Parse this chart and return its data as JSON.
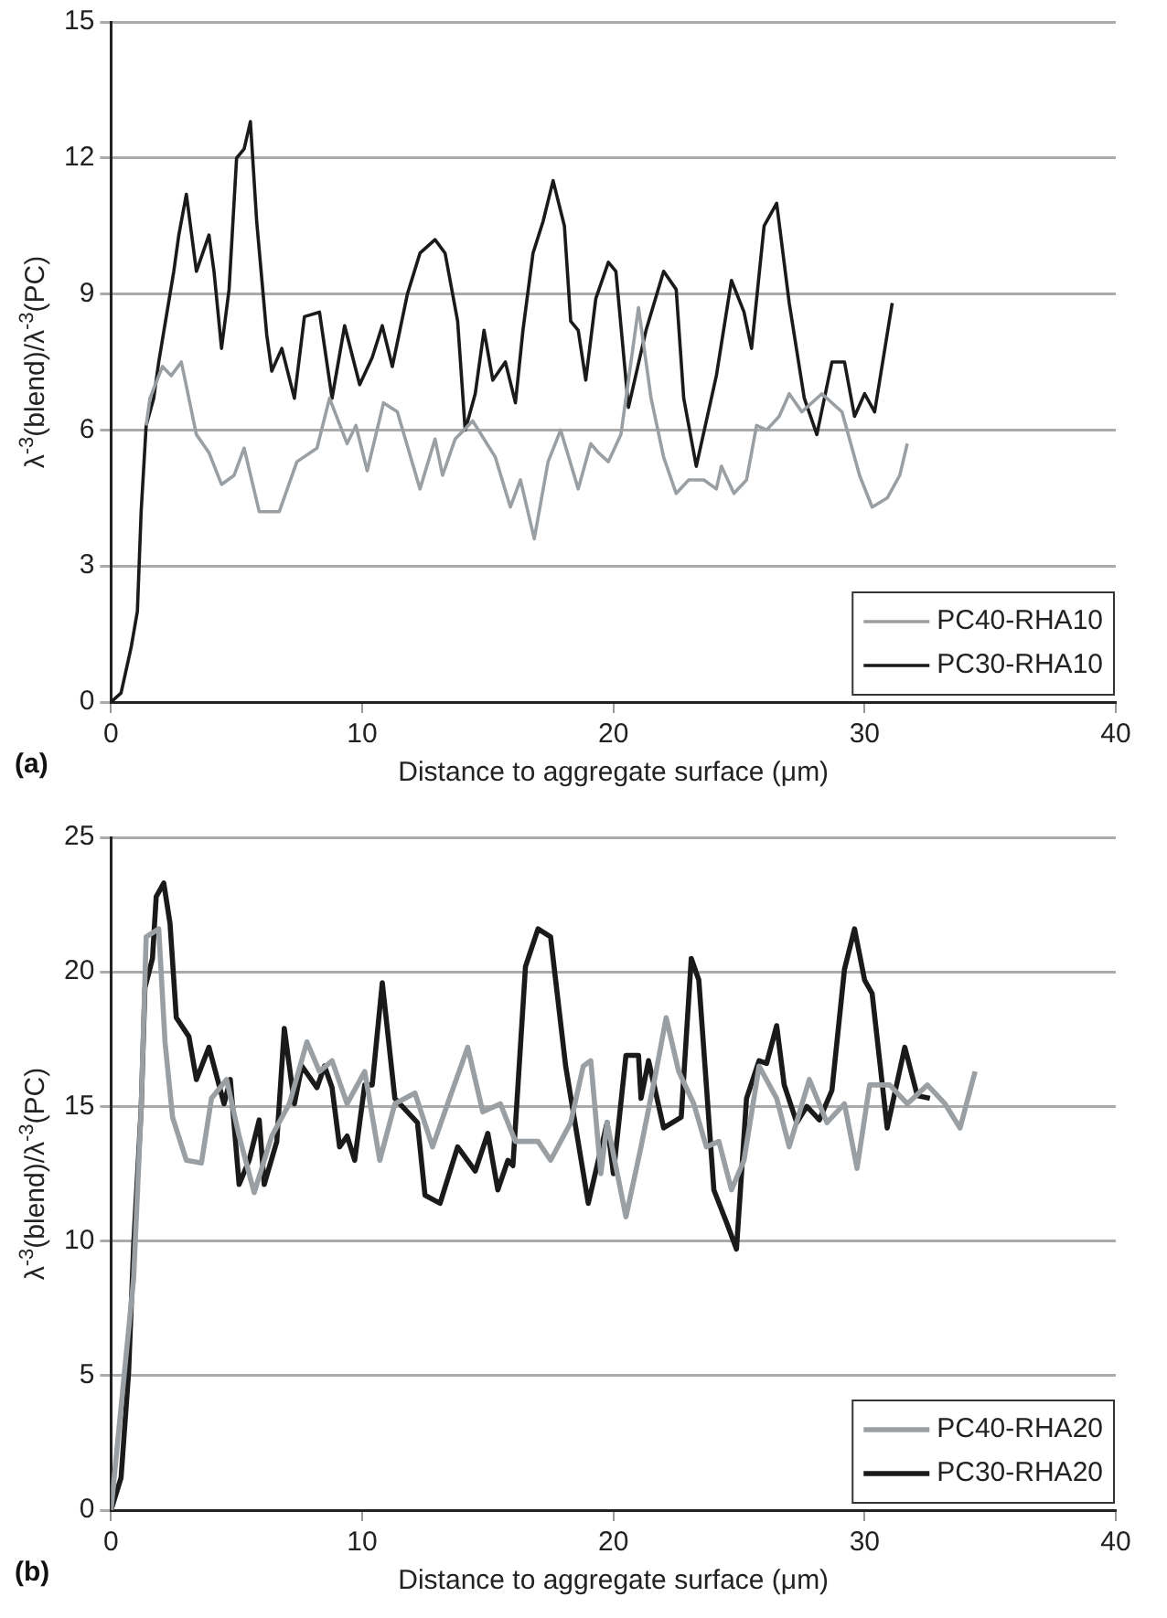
{
  "chart_data": [
    {
      "type": "line",
      "xlabel": "Distance to aggregate surface (μm)",
      "ylabel": "λ$^{-3}$(blend)/λ$^{-3}$(PC)",
      "annotations": [
        "(a)"
      ],
      "xlim": [
        0,
        40
      ],
      "xticks": [
        0,
        10,
        20,
        30,
        40
      ],
      "ylim": [
        0,
        15
      ],
      "yticks": [
        0,
        3,
        6,
        9,
        12,
        15
      ],
      "grid": "y",
      "legend": "bottom right",
      "marker": "none",
      "line_style": "solid",
      "series": [
        {
          "name": "PC40-RHA10",
          "color": "#9a9fa3",
          "x": [
            1.4,
            1.55,
            2.05,
            2.4,
            2.8,
            3.4,
            3.9,
            4.4,
            4.9,
            5.3,
            5.9,
            6.7,
            7.4,
            8.2,
            8.7,
            9.4,
            9.75,
            10.2,
            10.85,
            11.4,
            12.3,
            12.9,
            13.2,
            13.7,
            14.4,
            15.3,
            15.9,
            16.3,
            16.85,
            17.4,
            17.9,
            18.6,
            19.1,
            19.4,
            19.8,
            20.3,
            21.0,
            21.5,
            22.0,
            22.5,
            23.0,
            23.6,
            24.1,
            24.3,
            24.8,
            25.3,
            25.7,
            26.1,
            26.6,
            27.0,
            27.5,
            28.3,
            29.1,
            29.8,
            30.3,
            30.9,
            31.4,
            31.7
          ],
          "values": [
            6.1,
            6.7,
            7.4,
            7.2,
            7.5,
            5.9,
            5.5,
            4.8,
            5.0,
            5.6,
            4.2,
            4.2,
            5.3,
            5.6,
            6.7,
            5.7,
            6.1,
            5.1,
            6.6,
            6.4,
            4.7,
            5.8,
            5.0,
            5.8,
            6.2,
            5.4,
            4.3,
            4.9,
            3.6,
            5.3,
            6.0,
            4.7,
            5.7,
            5.5,
            5.3,
            5.9,
            8.7,
            6.7,
            5.4,
            4.6,
            4.9,
            4.9,
            4.7,
            5.2,
            4.6,
            4.9,
            6.1,
            6.0,
            6.3,
            6.8,
            6.4,
            6.8,
            6.4,
            5.0,
            4.3,
            4.5,
            5.0,
            5.7
          ]
        },
        {
          "name": "PC30-RHA10",
          "color": "#1a1a1a",
          "x": [
            0,
            0.4,
            0.8,
            1.05,
            1.2,
            1.4,
            1.7,
            1.9,
            2.2,
            2.5,
            2.7,
            3.0,
            3.4,
            3.9,
            4.1,
            4.4,
            4.7,
            5.0,
            5.3,
            5.55,
            5.8,
            6.2,
            6.4,
            6.8,
            7.3,
            7.7,
            8.3,
            8.8,
            9.3,
            9.9,
            10.4,
            10.8,
            11.2,
            11.8,
            12.3,
            12.9,
            13.3,
            13.8,
            14.1,
            14.5,
            14.85,
            15.2,
            15.7,
            16.1,
            16.4,
            16.8,
            17.2,
            17.6,
            18.05,
            18.3,
            18.6,
            18.9,
            19.3,
            19.8,
            20.1,
            20.6,
            21.3,
            22.0,
            22.5,
            22.8,
            23.3,
            24.1,
            24.7,
            25.2,
            25.5,
            26.0,
            26.5,
            27.0,
            27.6,
            28.1,
            28.7,
            29.2,
            29.6,
            30.0,
            30.4,
            31.1
          ],
          "values": [
            0,
            0.2,
            1.2,
            2.0,
            4.2,
            6.1,
            6.7,
            7.5,
            8.5,
            9.5,
            10.3,
            11.2,
            9.5,
            10.3,
            9.5,
            7.8,
            9.1,
            12.0,
            12.2,
            12.8,
            10.6,
            8.1,
            7.3,
            7.8,
            6.7,
            8.5,
            8.6,
            6.7,
            8.3,
            7.0,
            7.6,
            8.3,
            7.4,
            9.0,
            9.9,
            10.2,
            9.9,
            8.4,
            6.0,
            6.8,
            8.2,
            7.1,
            7.5,
            6.6,
            8.2,
            9.9,
            10.6,
            11.5,
            10.5,
            8.4,
            8.2,
            7.1,
            8.9,
            9.7,
            9.5,
            6.5,
            8.2,
            9.5,
            9.1,
            6.7,
            5.2,
            7.2,
            9.3,
            8.6,
            7.8,
            10.5,
            11.0,
            8.8,
            6.7,
            5.9,
            7.5,
            7.5,
            6.3,
            6.8,
            6.4,
            8.8
          ]
        }
      ]
    },
    {
      "type": "line",
      "xlabel": "Distance to aggregate surface (μm)",
      "ylabel": "λ$^{-3}$(blend)/λ$^{-3}$(PC)",
      "annotations": [
        "(b)"
      ],
      "xlim": [
        0,
        40
      ],
      "xticks": [
        0,
        10,
        20,
        30,
        40
      ],
      "ylim": [
        0,
        25
      ],
      "yticks": [
        0,
        5,
        10,
        15,
        20,
        25
      ],
      "grid": "y",
      "legend": "bottom right",
      "marker": "none",
      "line_style": "solid",
      "series": [
        {
          "name": "PC40-RHA20",
          "color": "#9a9fa3",
          "x": [
            0,
            0.9,
            1.2,
            1.4,
            1.9,
            2.15,
            2.45,
            3.0,
            3.6,
            4.0,
            4.6,
            5.1,
            5.7,
            6.4,
            7.1,
            7.8,
            8.3,
            8.8,
            9.4,
            10.1,
            10.7,
            11.3,
            12.1,
            12.8,
            13.4,
            14.2,
            14.8,
            15.5,
            16.1,
            17.0,
            17.5,
            18.3,
            18.8,
            19.1,
            19.5,
            19.75,
            20.5,
            21.1,
            21.7,
            22.1,
            22.6,
            23.2,
            23.7,
            24.2,
            24.7,
            25.2,
            25.8,
            26.5,
            27.0,
            27.8,
            28.5,
            29.2,
            29.7,
            30.2,
            31.0,
            31.7,
            32.5,
            33.2,
            33.8,
            34.4
          ],
          "values": [
            0,
            8.6,
            14.9,
            21.3,
            21.6,
            17.4,
            14.6,
            13.0,
            12.9,
            15.3,
            16.0,
            13.9,
            11.8,
            13.9,
            15.1,
            17.4,
            16.3,
            16.7,
            15.1,
            16.3,
            13.0,
            15.1,
            15.5,
            13.5,
            15.1,
            17.2,
            14.8,
            15.1,
            13.7,
            13.7,
            13.0,
            14.4,
            16.5,
            16.7,
            12.5,
            14.4,
            10.9,
            13.5,
            16.3,
            18.3,
            16.3,
            15.1,
            13.5,
            13.7,
            11.9,
            13.0,
            16.5,
            15.3,
            13.5,
            16.0,
            14.4,
            15.1,
            12.7,
            15.8,
            15.8,
            15.1,
            15.8,
            15.1,
            14.2,
            16.3
          ]
        },
        {
          "name": "PC30-RHA20",
          "color": "#1a1a1a",
          "x": [
            0,
            0.4,
            0.7,
            0.9,
            1.2,
            1.35,
            1.65,
            1.8,
            2.1,
            2.35,
            2.6,
            3.1,
            3.4,
            3.9,
            4.5,
            4.75,
            5.1,
            5.5,
            5.9,
            6.1,
            6.6,
            6.9,
            7.3,
            7.6,
            8.2,
            8.5,
            8.8,
            9.1,
            9.4,
            9.7,
            10.1,
            10.4,
            10.8,
            11.3,
            12.2,
            12.5,
            13.1,
            13.8,
            14.5,
            15.0,
            15.4,
            15.8,
            16.0,
            16.5,
            17.0,
            17.5,
            18.1,
            19.0,
            19.75,
            20.0,
            20.5,
            21.0,
            21.1,
            21.4,
            22.0,
            22.7,
            23.1,
            23.4,
            24.0,
            24.5,
            24.9,
            25.3,
            25.8,
            26.1,
            26.5,
            26.8,
            27.3,
            27.7,
            28.2,
            28.7,
            29.2,
            29.6,
            30.0,
            30.3,
            30.9,
            31.6,
            32.1,
            32.6
          ],
          "values": [
            0,
            1.2,
            5.1,
            9.8,
            14.9,
            19.4,
            20.5,
            22.8,
            23.3,
            21.8,
            18.3,
            17.6,
            16.0,
            17.2,
            15.1,
            16.0,
            12.1,
            13.0,
            14.5,
            12.1,
            13.7,
            17.9,
            15.1,
            16.5,
            15.7,
            16.5,
            15.7,
            13.5,
            13.9,
            13.0,
            15.8,
            15.8,
            19.6,
            15.3,
            14.4,
            11.7,
            11.4,
            13.5,
            12.6,
            14.0,
            11.9,
            13.0,
            12.8,
            20.2,
            21.6,
            21.3,
            16.5,
            11.4,
            14.4,
            12.5,
            16.9,
            16.9,
            15.3,
            16.7,
            14.2,
            14.6,
            20.5,
            19.7,
            11.9,
            10.7,
            9.7,
            15.3,
            16.7,
            16.6,
            18.0,
            15.8,
            14.4,
            15.0,
            14.5,
            15.6,
            20.1,
            21.6,
            19.7,
            19.2,
            14.2,
            17.2,
            15.4,
            15.3
          ]
        }
      ]
    }
  ]
}
